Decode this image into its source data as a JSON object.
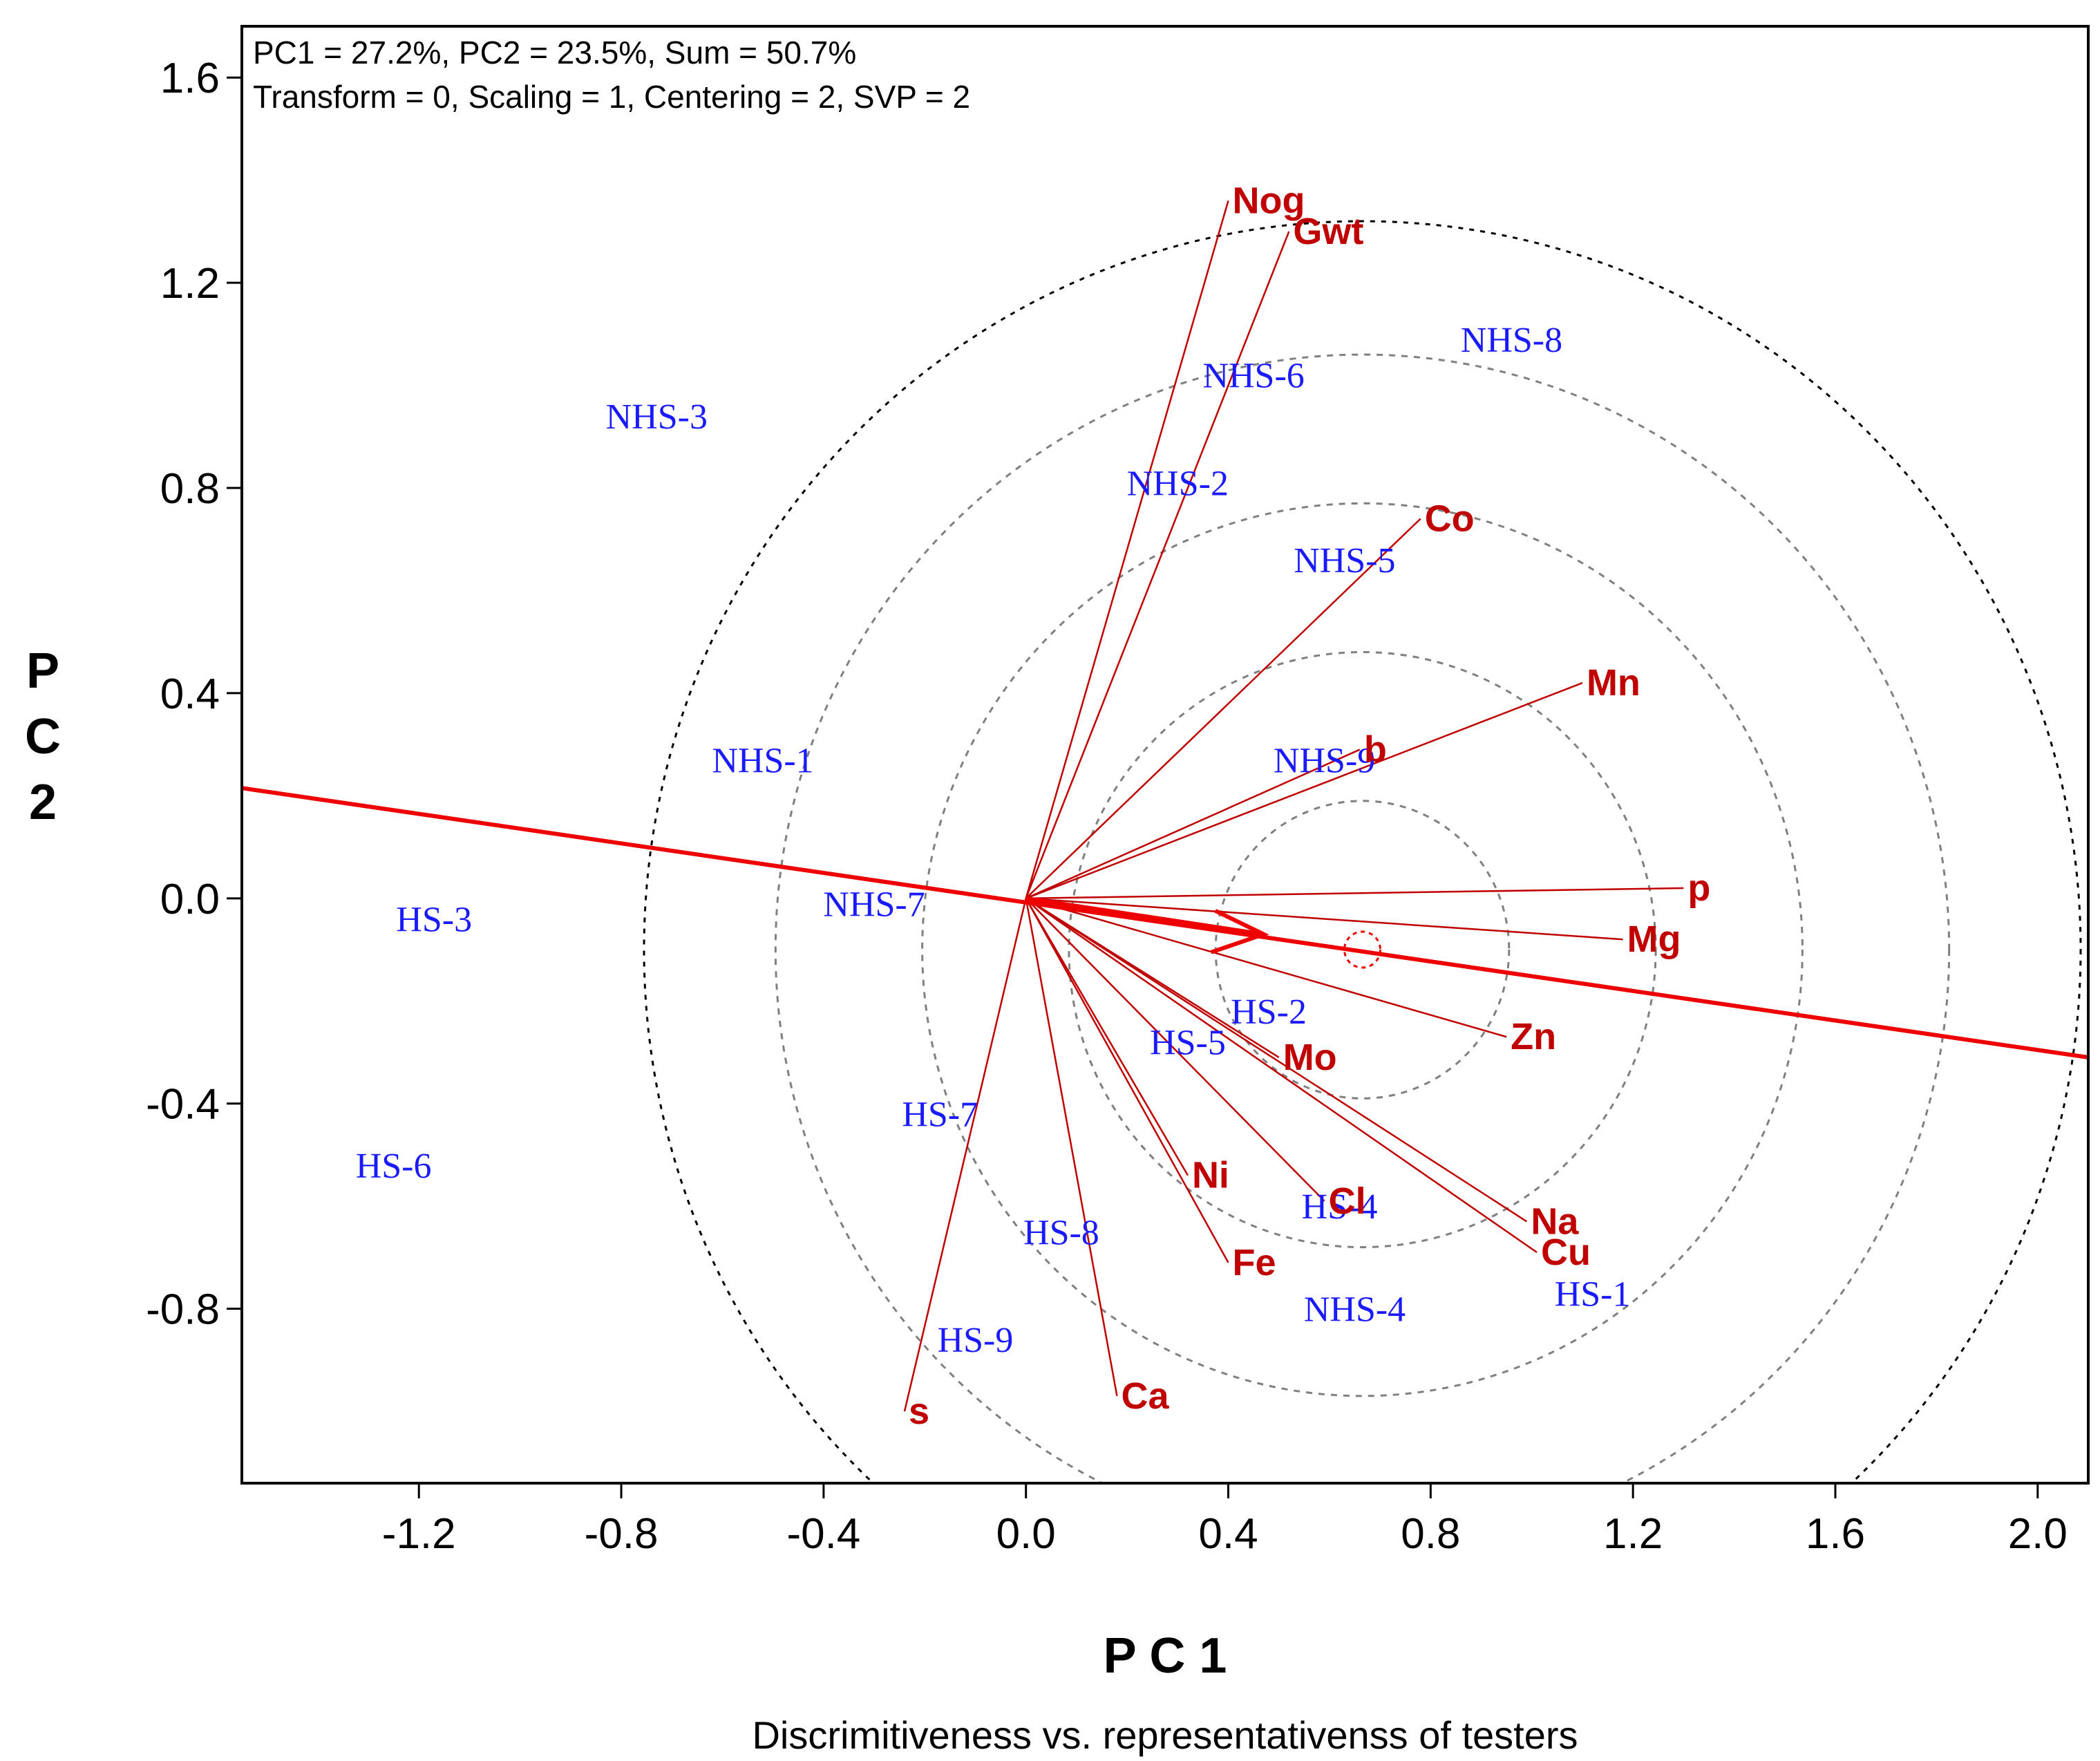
{
  "chart_data": {
    "type": "scatter",
    "subtype": "GGE biplot (vector view)",
    "info_line1": "PC1 = 27.2%, PC2 = 23.5%, Sum = 50.7%",
    "info_line2": "Transform = 0, Scaling = 1, Centering = 2, SVP = 2",
    "xlabel": "P C 1",
    "ylabel_chars": [
      "P",
      "C",
      "2"
    ],
    "caption": "Discrimitiveness vs. representativenss of testers",
    "xlim": [
      -1.55,
      2.1
    ],
    "ylim": [
      -1.14,
      1.7
    ],
    "x_ticks": [
      -1.2,
      -0.8,
      -0.4,
      0.0,
      0.4,
      0.8,
      1.2,
      1.6,
      2.0
    ],
    "x_tick_labels": [
      "-1.2",
      "-0.8",
      "-0.4",
      "0.0",
      "0.4",
      "0.8",
      "1.2",
      "1.6",
      "2.0"
    ],
    "y_ticks": [
      1.6,
      1.2,
      0.8,
      0.4,
      0.0,
      -0.4,
      -0.8
    ],
    "y_tick_labels": [
      "1.6",
      "1.2",
      "0.8",
      "0.4",
      "0.0",
      "-0.4",
      "-0.8"
    ],
    "colors": {
      "trait": "#c00000",
      "genotype": "#1a1aff",
      "axis_line": "#ee0000",
      "circle": "#808080",
      "outer_circle": "#000000"
    },
    "traits": [
      {
        "name": "Nog",
        "x": 0.4,
        "y": 1.36
      },
      {
        "name": "Gwt",
        "x": 0.52,
        "y": 1.3
      },
      {
        "name": "Co",
        "x": 0.78,
        "y": 0.74
      },
      {
        "name": "Mn",
        "x": 1.1,
        "y": 0.42
      },
      {
        "name": "b",
        "x": 0.66,
        "y": 0.29
      },
      {
        "name": "p",
        "x": 1.3,
        "y": 0.02
      },
      {
        "name": "Mg",
        "x": 1.18,
        "y": -0.08
      },
      {
        "name": "Zn",
        "x": 0.95,
        "y": -0.27
      },
      {
        "name": "Mo",
        "x": 0.5,
        "y": -0.31
      },
      {
        "name": "Cl",
        "x": 0.59,
        "y": -0.59
      },
      {
        "name": "Na",
        "x": 0.99,
        "y": -0.63
      },
      {
        "name": "Cu",
        "x": 1.01,
        "y": -0.69
      },
      {
        "name": "Ni",
        "x": 0.32,
        "y": -0.54
      },
      {
        "name": "Fe",
        "x": 0.4,
        "y": -0.71
      },
      {
        "name": "Ca",
        "x": 0.18,
        "y": -0.97
      },
      {
        "name": "s",
        "x": -0.24,
        "y": -1.0
      }
    ],
    "genotypes": [
      {
        "name": "NHS-8",
        "x": 0.96,
        "y": 1.09
      },
      {
        "name": "NHS-6",
        "x": 0.45,
        "y": 1.02
      },
      {
        "name": "NHS-3",
        "x": -0.73,
        "y": 0.94
      },
      {
        "name": "NHS-2",
        "x": 0.3,
        "y": 0.81
      },
      {
        "name": "NHS-5",
        "x": 0.63,
        "y": 0.66
      },
      {
        "name": "NHS-9",
        "x": 0.59,
        "y": 0.27
      },
      {
        "name": "NHS-1",
        "x": -0.52,
        "y": 0.27
      },
      {
        "name": "NHS-7",
        "x": -0.3,
        "y": -0.01
      },
      {
        "name": "HS-3",
        "x": -1.17,
        "y": -0.04
      },
      {
        "name": "HS-2",
        "x": 0.48,
        "y": -0.22
      },
      {
        "name": "HS-5",
        "x": 0.32,
        "y": -0.28
      },
      {
        "name": "HS-7",
        "x": -0.17,
        "y": -0.42
      },
      {
        "name": "HS-6",
        "x": -1.25,
        "y": -0.52
      },
      {
        "name": "HS-4",
        "x": 0.62,
        "y": -0.6
      },
      {
        "name": "HS-8",
        "x": 0.07,
        "y": -0.65
      },
      {
        "name": "HS-1",
        "x": 1.12,
        "y": -0.77
      },
      {
        "name": "NHS-4",
        "x": 0.65,
        "y": -0.8
      },
      {
        "name": "HS-9",
        "x": -0.1,
        "y": -0.86
      }
    ],
    "average_tester_axis": {
      "from": [
        -1.55,
        0.215
      ],
      "to": [
        2.1,
        -0.31
      ]
    },
    "average_tester_point": [
      0.665,
      -0.1
    ],
    "concentric_circle_radii": [
      0.29,
      0.58,
      0.87,
      1.16
    ],
    "outer_circle_radius": 1.42
  }
}
